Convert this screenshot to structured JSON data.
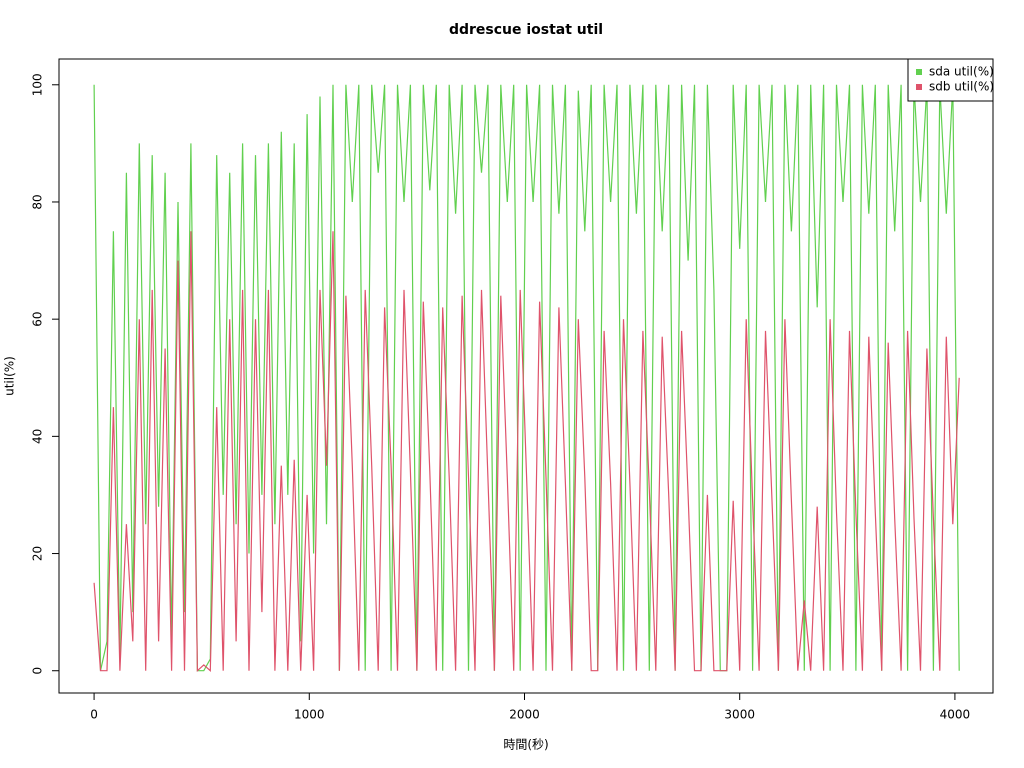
{
  "chart_data": {
    "type": "line",
    "title": "ddrescue iostat util",
    "xlabel": "時間(秒)",
    "ylabel": "util(%)",
    "x": [
      0,
      30,
      60,
      90,
      120,
      150,
      180,
      210,
      240,
      270,
      300,
      330,
      360,
      390,
      420,
      450,
      480,
      510,
      540,
      570,
      600,
      630,
      660,
      690,
      720,
      750,
      780,
      810,
      840,
      870,
      900,
      930,
      960,
      990,
      1020,
      1050,
      1080,
      1110,
      1140,
      1170,
      1200,
      1230,
      1260,
      1290,
      1320,
      1350,
      1380,
      1410,
      1440,
      1470,
      1500,
      1530,
      1560,
      1590,
      1620,
      1650,
      1680,
      1710,
      1740,
      1770,
      1800,
      1830,
      1860,
      1890,
      1920,
      1950,
      1980,
      2010,
      2040,
      2070,
      2100,
      2130,
      2160,
      2190,
      2220,
      2250,
      2280,
      2310,
      2340,
      2370,
      2400,
      2430,
      2460,
      2490,
      2520,
      2550,
      2580,
      2610,
      2640,
      2670,
      2700,
      2730,
      2760,
      2790,
      2820,
      2850,
      2880,
      2910,
      2940,
      2970,
      3000,
      3030,
      3060,
      3090,
      3120,
      3150,
      3180,
      3210,
      3240,
      3270,
      3300,
      3330,
      3360,
      3390,
      3420,
      3450,
      3480,
      3510,
      3540,
      3570,
      3600,
      3630,
      3660,
      3690,
      3720,
      3750,
      3780,
      3810,
      3840,
      3870,
      3900,
      3930,
      3960,
      3990,
      4020
    ],
    "series": [
      {
        "name": "sda util(%)",
        "color": "#61D04F",
        "values": [
          100,
          0,
          5,
          75,
          2,
          85,
          10,
          90,
          25,
          88,
          28,
          85,
          5,
          80,
          10,
          90,
          0,
          0,
          2,
          88,
          30,
          85,
          25,
          90,
          20,
          88,
          30,
          90,
          25,
          92,
          30,
          90,
          5,
          95,
          20,
          98,
          25,
          100,
          0,
          100,
          80,
          100,
          0,
          100,
          85,
          100,
          0,
          100,
          80,
          100,
          0,
          100,
          82,
          100,
          0,
          100,
          78,
          100,
          0,
          100,
          85,
          100,
          0,
          100,
          80,
          100,
          0,
          100,
          80,
          100,
          0,
          100,
          78,
          100,
          0,
          99,
          75,
          100,
          0,
          100,
          80,
          100,
          0,
          100,
          78,
          100,
          0,
          100,
          75,
          100,
          0,
          100,
          70,
          100,
          0,
          100,
          65,
          0,
          0,
          100,
          72,
          100,
          0,
          100,
          80,
          100,
          0,
          100,
          75,
          100,
          0,
          100,
          62,
          100,
          0,
          100,
          80,
          100,
          0,
          100,
          78,
          100,
          0,
          100,
          75,
          100,
          0,
          100,
          80,
          100,
          0,
          100,
          78,
          100,
          0
        ]
      },
      {
        "name": "sdb util(%)",
        "color": "#DF536B",
        "values": [
          15,
          0,
          0,
          45,
          0,
          25,
          5,
          60,
          0,
          65,
          5,
          55,
          0,
          70,
          0,
          75,
          0,
          1,
          0,
          45,
          0,
          60,
          5,
          65,
          0,
          60,
          10,
          65,
          0,
          35,
          0,
          36,
          0,
          30,
          0,
          65,
          35,
          75,
          0,
          64,
          35,
          0,
          65,
          35,
          0,
          62,
          35,
          0,
          65,
          34,
          0,
          63,
          34,
          0,
          62,
          33,
          0,
          64,
          33,
          0,
          65,
          33,
          0,
          64,
          33,
          0,
          65,
          33,
          0,
          63,
          33,
          0,
          62,
          32,
          0,
          60,
          33,
          0,
          0,
          58,
          32,
          0,
          60,
          32,
          0,
          58,
          31,
          0,
          57,
          30,
          0,
          58,
          30,
          0,
          0,
          30,
          0,
          0,
          0,
          29,
          0,
          60,
          29,
          0,
          58,
          29,
          0,
          60,
          29,
          0,
          12,
          0,
          28,
          0,
          60,
          27,
          0,
          58,
          27,
          0,
          57,
          27,
          0,
          56,
          26,
          0,
          58,
          26,
          0,
          55,
          26,
          0,
          57,
          25,
          50
        ]
      }
    ],
    "xlim": [
      -163,
      4177
    ],
    "ylim": [
      -3.8,
      104.4
    ],
    "xticks": [
      0,
      1000,
      2000,
      3000,
      4000
    ],
    "yticks": [
      0,
      20,
      40,
      60,
      80,
      100
    ],
    "legend": "topright"
  }
}
